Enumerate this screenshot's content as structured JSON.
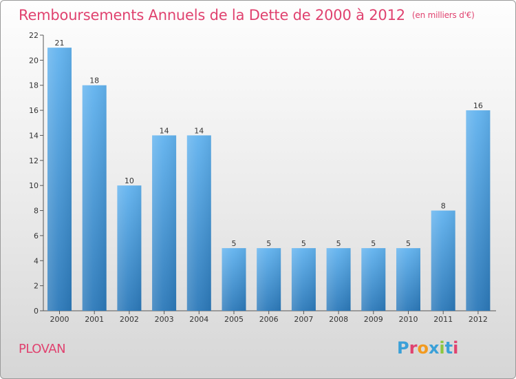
{
  "header": {
    "title": "Remboursements Annuels de la Dette de 2000 à 2012",
    "subtitle": "(en milliers d'€)"
  },
  "footer": {
    "commune": "PLOVAN",
    "logo_text": "Proxiti",
    "logo_colors": [
      "#3aa0d8",
      "#e0426f",
      "#f29a1f",
      "#3aa0d8",
      "#8cc63f",
      "#3aa0d8",
      "#e0426f"
    ]
  },
  "chart_data": {
    "type": "bar",
    "title": "Remboursements Annuels de la Dette de 2000 à 2012",
    "subtitle": "(en milliers d'€)",
    "categories": [
      "2000",
      "2001",
      "2002",
      "2003",
      "2004",
      "2005",
      "2006",
      "2007",
      "2008",
      "2009",
      "2010",
      "2011",
      "2012"
    ],
    "values": [
      21,
      18,
      10,
      14,
      14,
      5,
      5,
      5,
      5,
      5,
      5,
      8,
      16
    ],
    "ylim": [
      0,
      22
    ],
    "yticks": [
      0,
      2,
      4,
      6,
      8,
      10,
      12,
      14,
      16,
      18,
      20,
      22
    ],
    "grid": false,
    "bar_color_top": "#62b3ef",
    "bar_color_bottom": "#2c79b9"
  }
}
